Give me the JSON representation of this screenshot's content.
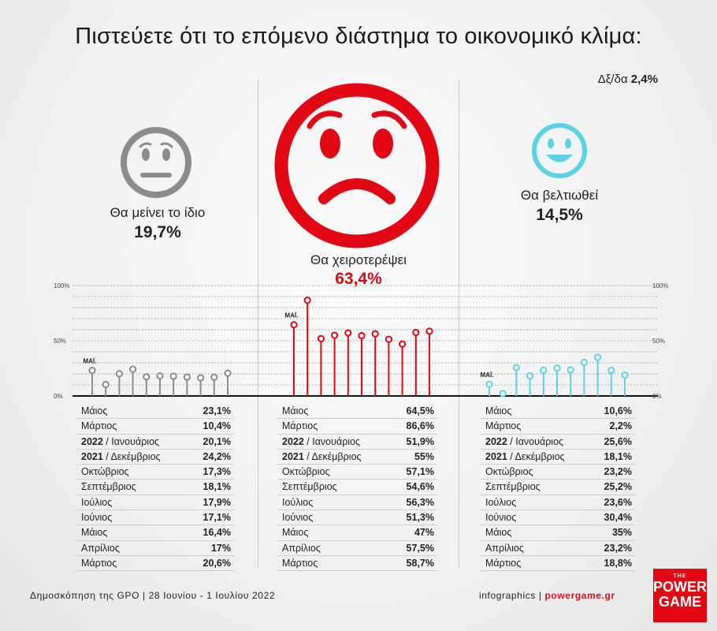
{
  "title": "Πιστεύετε ότι το επόμενο διάστημα το οικονομικό κλίμα:",
  "undecided": {
    "label": "Δξ/δα",
    "value": "2,4%"
  },
  "options": [
    {
      "label": "Θα μείνει το ίδιο",
      "value": "19,7%"
    },
    {
      "label": "Θα χειροτερέψει",
      "value": "63,4%"
    },
    {
      "label": "Θα βελτιωθεί",
      "value": "14,5%"
    }
  ],
  "axis_labels": {
    "top": "100%",
    "mid": "50%",
    "zero": "0%"
  },
  "colors": {
    "same": "#8c8c8c",
    "worse": "#e30613",
    "better": "#5ad4e4"
  },
  "chart_data": {
    "type": "lollipop",
    "x": [
      "Μάιος",
      "Μάρτιος",
      "Ιανουάριος 2022",
      "Δεκέμβριος 2021",
      "Οκτώβριος",
      "Σεπτέμβριος",
      "Ιούλιος",
      "Ιούνιος",
      "Μάιος",
      "Απρίλιος",
      "Μάρτιος"
    ],
    "ylim": [
      0,
      100
    ],
    "series": [
      {
        "name": "Θα μείνει το ίδιο",
        "first_label": "ΜΑΪ.",
        "values": [
          23.1,
          10.4,
          20.1,
          24.2,
          17.3,
          18.1,
          17.9,
          17.1,
          16.4,
          17,
          20.6
        ]
      },
      {
        "name": "Θα χειροτερέψει",
        "first_label": "ΜΑΪ.",
        "values": [
          64.5,
          86.6,
          51.9,
          55,
          57.1,
          54.6,
          56.3,
          51.3,
          47,
          57.5,
          58.7
        ]
      },
      {
        "name": "Θα βελτιωθεί",
        "first_label": "ΜΑΪ.",
        "values": [
          10.6,
          2.2,
          25.6,
          18.1,
          23.2,
          25.2,
          23.6,
          30.4,
          35,
          23.2,
          18.8
        ]
      }
    ]
  },
  "tables": [
    {
      "rows": [
        {
          "year": "",
          "month": "Μάιος",
          "value": "23,1%"
        },
        {
          "year": "",
          "month": "Μάρτιος",
          "value": "10,4%"
        },
        {
          "year": "2022",
          "month": " / Ιανουάριος",
          "value": "20,1%"
        },
        {
          "year": "2021",
          "month": " / Δεκέμβριος",
          "value": "24,2%"
        },
        {
          "year": "",
          "month": "Οκτώβριος",
          "value": "17,3%"
        },
        {
          "year": "",
          "month": "Σεπτέμβριος",
          "value": "18,1%"
        },
        {
          "year": "",
          "month": "Ιούλιος",
          "value": "17,9%"
        },
        {
          "year": "",
          "month": "Ιούνιος",
          "value": "17,1%"
        },
        {
          "year": "",
          "month": "Μάιος",
          "value": "16,4%"
        },
        {
          "year": "",
          "month": "Απρίλιος",
          "value": "17%"
        },
        {
          "year": "",
          "month": "Μάρτιος",
          "value": "20,6%"
        }
      ]
    },
    {
      "rows": [
        {
          "year": "",
          "month": "Μάιος",
          "value": "64,5%"
        },
        {
          "year": "",
          "month": "Μάρτιος",
          "value": "86,6%"
        },
        {
          "year": "2022",
          "month": " / Ιανουάριος",
          "value": "51,9%"
        },
        {
          "year": "2021",
          "month": " / Δεκέμβριος",
          "value": "55%"
        },
        {
          "year": "",
          "month": "Οκτώβριος",
          "value": "57,1%"
        },
        {
          "year": "",
          "month": "Σεπτέμβριος",
          "value": "54,6%"
        },
        {
          "year": "",
          "month": "Ιούλιος",
          "value": "56,3%"
        },
        {
          "year": "",
          "month": "Ιούνιος",
          "value": "51,3%"
        },
        {
          "year": "",
          "month": "Μάιος",
          "value": "47%"
        },
        {
          "year": "",
          "month": "Απρίλιος",
          "value": "57,5%"
        },
        {
          "year": "",
          "month": "Μάρτιος",
          "value": "58,7%"
        }
      ]
    },
    {
      "rows": [
        {
          "year": "",
          "month": "Μάιος",
          "value": "10,6%"
        },
        {
          "year": "",
          "month": "Μάρτιος",
          "value": "2,2%"
        },
        {
          "year": "2022",
          "month": " / Ιανουάριος",
          "value": "25,6%"
        },
        {
          "year": "2021",
          "month": " / Δεκέμβριος",
          "value": "18,1%"
        },
        {
          "year": "",
          "month": "Οκτώβριος",
          "value": "23,2%"
        },
        {
          "year": "",
          "month": "Σεπτέμβριος",
          "value": "25,2%"
        },
        {
          "year": "",
          "month": "Ιούλιος",
          "value": "23,6%"
        },
        {
          "year": "",
          "month": "Ιούνιος",
          "value": "30,4%"
        },
        {
          "year": "",
          "month": "Μάιος",
          "value": "35%"
        },
        {
          "year": "",
          "month": "Απρίλιος",
          "value": "23,2%"
        },
        {
          "year": "",
          "month": "Μάρτιος",
          "value": "18,8%"
        }
      ]
    }
  ],
  "footer": {
    "source": "Δημοσκόπηση της GPO | 28 Ιουνίου - 1 Ιουλίου 2022",
    "credit": "infographics |",
    "site": "powergame.gr"
  },
  "logo": {
    "line0": "THE",
    "line1": "POWER",
    "line2": "GAME"
  }
}
